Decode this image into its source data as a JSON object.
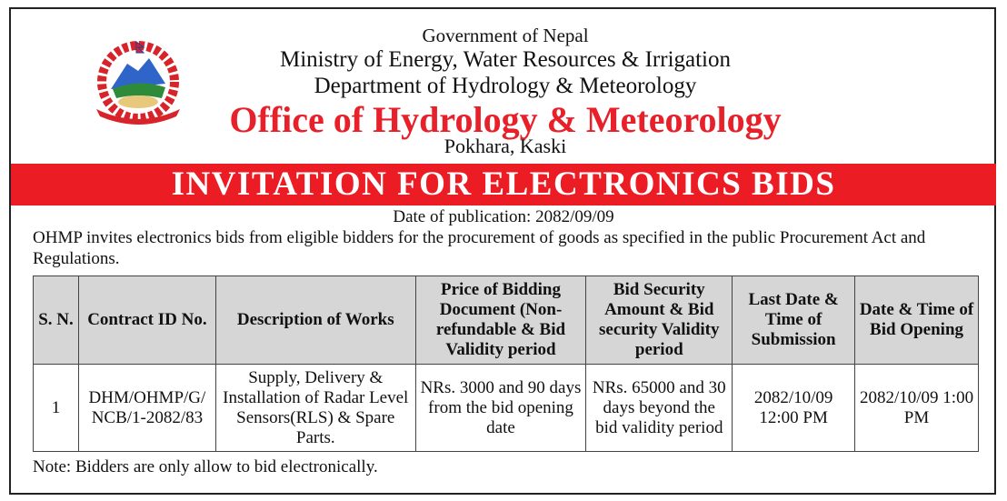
{
  "header": {
    "government": "Government of Nepal",
    "ministry": "Ministry of Energy, Water Resources & Irrigation",
    "department": "Department of Hydrology & Meteorology",
    "office": "Office of Hydrology & Meteorology",
    "location": "Pokhara, Kaski",
    "emblem": "nepal-emblem"
  },
  "banner": {
    "title": "INVITATION FOR ELECTRONICS BIDS",
    "color": "#ec1c24"
  },
  "publication": "Date of publication: 2082/09/09",
  "intro": "OHMP  invites electronics bids from eligible bidders for the procurement of  goods as specified in the public Procurement Act and Regulations.",
  "table": {
    "headers": [
      "S. N.",
      "Contract ID No.",
      "Description of Works",
      "Price of Bidding Document (Non-refundable & Bid Validity period",
      "Bid Security Amount & Bid security Validity period",
      "Last Date & Time of Submission",
      "Date & Time of Bid Opening"
    ],
    "rows": [
      [
        "1",
        "DHM/OHMP/G/ NCB/1-2082/83",
        "Supply,  Delivery & Installation  of  Radar Level Sensors(RLS) & Spare Parts.",
        "NRs. 3000 and 90 days from the bid opening date",
        "NRs. 65000 and 30 days beyond the bid validity period",
        "2082/10/09 12:00 PM",
        "2082/10/09 1:00 PM"
      ]
    ]
  },
  "note": "Note: Bidders are only allow to bid electronically."
}
